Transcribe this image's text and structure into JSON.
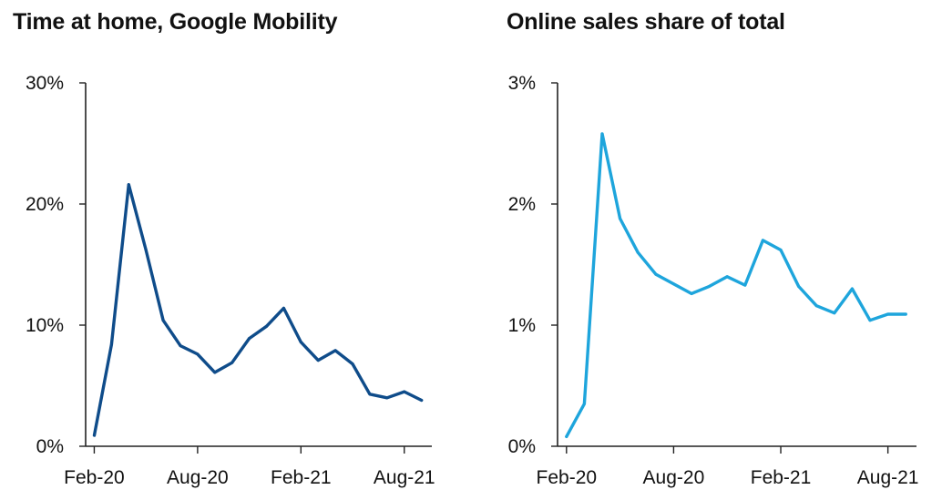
{
  "colors": {
    "left_series": "#0f4c8a",
    "right_series": "#1ea5dc",
    "axis": "#222222"
  },
  "chart_data": [
    {
      "type": "line",
      "title": "Time at home, Google Mobility",
      "xlabel": "",
      "ylabel": "",
      "ylim": [
        0,
        30
      ],
      "y_ticks": [
        0,
        10,
        20,
        30
      ],
      "y_tick_labels": [
        "0%",
        "10%",
        "20%",
        "30%"
      ],
      "x_ticks": [
        0,
        6,
        12,
        18
      ],
      "x_tick_labels": [
        "Feb-20",
        "Aug-20",
        "Feb-21",
        "Aug-21"
      ],
      "xlim": [
        -0.5,
        19.6
      ],
      "series": [
        {
          "name": "Time at home",
          "x": [
            0,
            1,
            2,
            3,
            4,
            5,
            6,
            7,
            8,
            9,
            10,
            11,
            12,
            13,
            14,
            15,
            16,
            17,
            18,
            19
          ],
          "values": [
            0.9,
            8.4,
            21.6,
            16.2,
            10.4,
            8.3,
            7.6,
            6.1,
            6.9,
            8.9,
            9.9,
            11.4,
            8.6,
            7.1,
            7.9,
            6.8,
            4.3,
            4.0,
            4.5,
            3.8
          ]
        }
      ]
    },
    {
      "type": "line",
      "title": "Online sales share of total",
      "xlabel": "",
      "ylabel": "",
      "ylim": [
        0,
        3
      ],
      "y_ticks": [
        0,
        1,
        2,
        3
      ],
      "y_tick_labels": [
        "0%",
        "1%",
        "2%",
        "3%"
      ],
      "x_ticks": [
        0,
        6,
        12,
        18
      ],
      "x_tick_labels": [
        "Feb-20",
        "Aug-20",
        "Feb-21",
        "Aug-21"
      ],
      "xlim": [
        -0.5,
        19.6
      ],
      "series": [
        {
          "name": "Online sales share",
          "x": [
            0,
            1,
            2,
            3,
            4,
            5,
            6,
            7,
            8,
            9,
            10,
            11,
            12,
            13,
            14,
            15,
            16,
            17,
            18,
            19
          ],
          "values": [
            0.08,
            0.35,
            2.58,
            1.88,
            1.6,
            1.42,
            1.34,
            1.26,
            1.32,
            1.4,
            1.33,
            1.7,
            1.62,
            1.32,
            1.16,
            1.1,
            1.3,
            1.04,
            1.09,
            1.09
          ]
        }
      ]
    }
  ]
}
